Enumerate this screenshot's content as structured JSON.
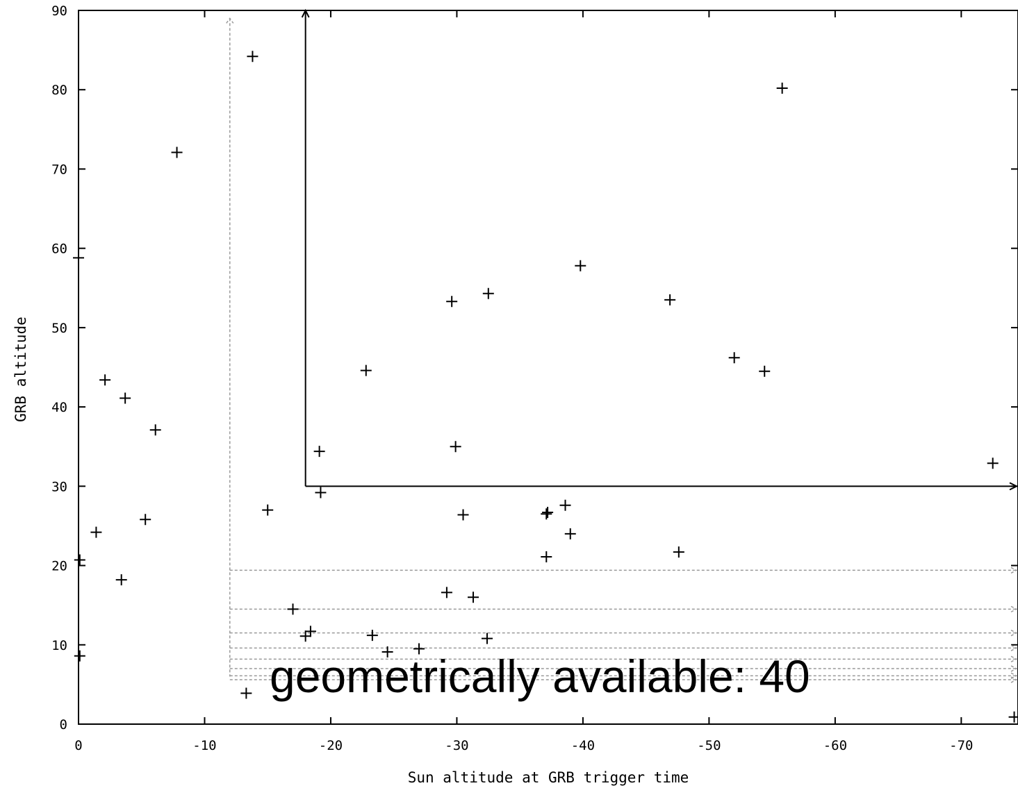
{
  "chart_data": {
    "type": "scatter",
    "xlabel": "Sun altitude at GRB trigger time",
    "ylabel": "GRB altitude",
    "xlim": [
      0,
      -74.5
    ],
    "ylim": [
      0,
      90
    ],
    "xticks": [
      0,
      -10,
      -20,
      -30,
      -40,
      -50,
      -60,
      -70
    ],
    "yticks": [
      0,
      10,
      20,
      30,
      40,
      50,
      60,
      70,
      80,
      90
    ],
    "xtick_labels": [
      "0",
      "-10",
      "-20",
      "-30",
      "-40",
      "-50",
      "-60",
      "-70"
    ],
    "ytick_labels": [
      "0",
      "10",
      "20",
      "30",
      "40",
      "50",
      "60",
      "70",
      "80",
      "90"
    ],
    "grid": false,
    "marker": "+",
    "annotation": "geometrically available: 40",
    "points": [
      {
        "x": -13.8,
        "y": 84.2
      },
      {
        "x": -7.8,
        "y": 72.1
      },
      {
        "x": 0.0,
        "y": 58.8
      },
      {
        "x": -2.1,
        "y": 43.4
      },
      {
        "x": -3.7,
        "y": 41.1
      },
      {
        "x": -6.1,
        "y": 37.1
      },
      {
        "x": -1.4,
        "y": 24.2
      },
      {
        "x": -5.3,
        "y": 25.8
      },
      {
        "x": -0.1,
        "y": 20.7
      },
      {
        "x": -3.4,
        "y": 18.2
      },
      {
        "x": -0.1,
        "y": 8.6
      },
      {
        "x": -15.0,
        "y": 27.0
      },
      {
        "x": -17.0,
        "y": 14.5
      },
      {
        "x": -18.0,
        "y": 11.1
      },
      {
        "x": -18.4,
        "y": 11.7
      },
      {
        "x": -13.3,
        "y": 3.9
      },
      {
        "x": -19.1,
        "y": 34.4
      },
      {
        "x": -19.2,
        "y": 29.2
      },
      {
        "x": -22.8,
        "y": 44.6
      },
      {
        "x": -23.3,
        "y": 11.2
      },
      {
        "x": -24.5,
        "y": 9.1
      },
      {
        "x": -27.0,
        "y": 9.5
      },
      {
        "x": -29.2,
        "y": 16.6
      },
      {
        "x": -29.6,
        "y": 53.3
      },
      {
        "x": -29.9,
        "y": 35.0
      },
      {
        "x": -30.5,
        "y": 26.4
      },
      {
        "x": -31.3,
        "y": 16.0
      },
      {
        "x": -32.4,
        "y": 10.8
      },
      {
        "x": -32.5,
        "y": 54.3
      },
      {
        "x": -37.1,
        "y": 26.5
      },
      {
        "x": -37.2,
        "y": 26.7
      },
      {
        "x": -37.1,
        "y": 21.1
      },
      {
        "x": -38.6,
        "y": 27.6
      },
      {
        "x": -39.0,
        "y": 24.0
      },
      {
        "x": -39.8,
        "y": 57.8
      },
      {
        "x": -46.9,
        "y": 53.5
      },
      {
        "x": -47.6,
        "y": 21.7
      },
      {
        "x": -52.0,
        "y": 46.2
      },
      {
        "x": -54.4,
        "y": 44.5
      },
      {
        "x": -55.8,
        "y": 80.2
      },
      {
        "x": -72.5,
        "y": 32.9
      },
      {
        "x": -74.2,
        "y": 0.9
      }
    ],
    "solid_region": {
      "x_from": -18,
      "x_to": -74.5,
      "y_from": 30,
      "y_to": 90
    },
    "dashed_vertical": {
      "x": -12,
      "y_from": 6,
      "y_to": 89
    },
    "dashed_horizontals": {
      "x_from": -12,
      "x_to": -74.5,
      "y": [
        19.4,
        14.5,
        11.5,
        9.6,
        8.2,
        7.0,
        6.1,
        5.6
      ]
    }
  }
}
